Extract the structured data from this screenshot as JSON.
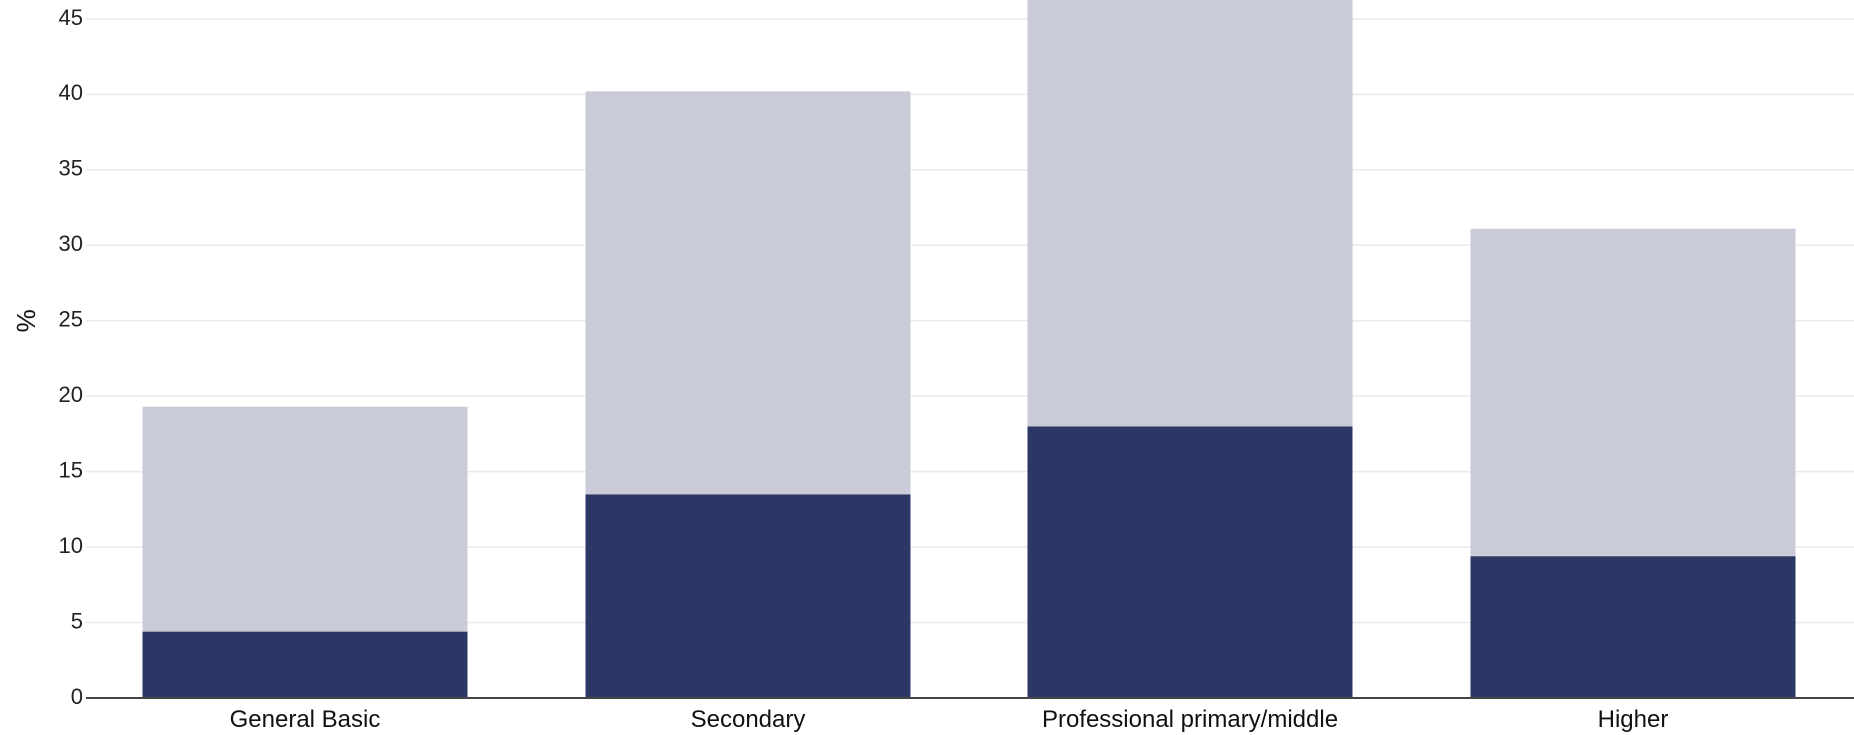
{
  "chart_data": {
    "type": "bar",
    "stacked": true,
    "categories": [
      "General Basic",
      "Secondary",
      "Professional primary/middle",
      "Higher"
    ],
    "series": [
      {
        "color": "#2b3765",
        "values": [
          4.4,
          13.5,
          18.0,
          9.4
        ]
      },
      {
        "color": "#cacbd8",
        "values": [
          14.9,
          26.7,
          28.9,
          21.7
        ]
      }
    ],
    "ylabel": "%",
    "yticks": [
      0,
      5,
      10,
      15,
      20,
      25,
      30,
      35,
      40,
      45
    ],
    "ylim": [
      0,
      46.4
    ],
    "grid": true,
    "grid_color": "#e9e9ee",
    "axis_color": "#444444"
  }
}
